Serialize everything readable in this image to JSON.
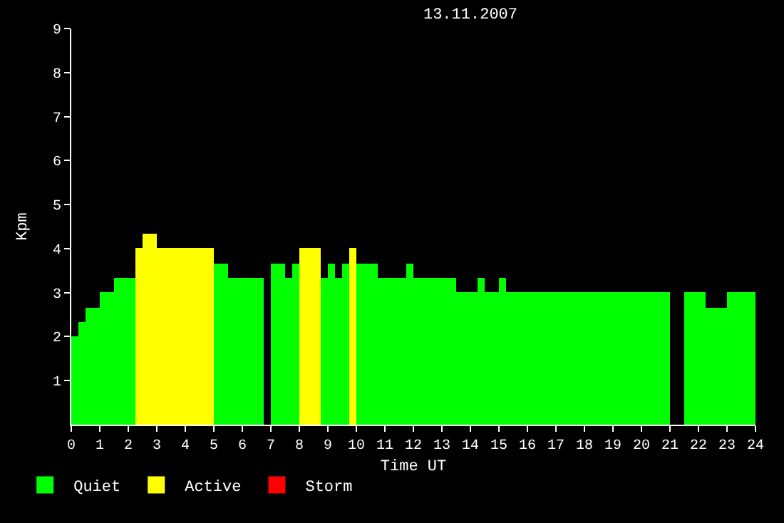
{
  "chart_data": {
    "type": "bar",
    "title": "13.11.2007",
    "xlabel": "Time UT",
    "ylabel": "Kpm",
    "x": [
      0.125,
      0.375,
      0.75,
      1.25,
      1.875,
      2.375,
      2.75,
      4.0,
      5.25,
      6.125,
      6.875,
      7.25,
      7.625,
      7.875,
      8.375,
      8.875,
      9.125,
      9.375,
      9.625,
      9.875,
      10.375,
      11.25,
      11.875,
      12.75,
      13.875,
      14.375,
      14.75,
      15.125,
      18.125,
      21.25,
      21.875,
      22.625,
      23.5
    ],
    "series": [
      {
        "name": "Quiet",
        "color": "#00ff00",
        "values": [
          2.0,
          2.33,
          2.67,
          3.0,
          3.33,
          null,
          null,
          null,
          3.67,
          3.33,
          null,
          3.67,
          3.33,
          3.67,
          null,
          3.33,
          3.67,
          3.33,
          3.67,
          null,
          3.67,
          3.33,
          3.67,
          3.33,
          3.0,
          3.33,
          3.0,
          3.33,
          3.0,
          null,
          3.0,
          2.67,
          3.0
        ]
      },
      {
        "name": "Active",
        "color": "#ffff00",
        "values": [
          null,
          null,
          null,
          null,
          null,
          4.0,
          4.33,
          4.0,
          null,
          null,
          null,
          null,
          null,
          null,
          4.0,
          null,
          null,
          null,
          null,
          4.0,
          null,
          null,
          null,
          null,
          null,
          null,
          null,
          null,
          null,
          null,
          null,
          null,
          null
        ]
      },
      {
        "name": "Storm",
        "color": "#ff0000",
        "values": [
          null,
          null,
          null,
          null,
          null,
          null,
          null,
          null,
          null,
          null,
          null,
          null,
          null,
          null,
          null,
          null,
          null,
          null,
          null,
          null,
          null,
          null,
          null,
          null,
          null,
          null,
          null,
          null,
          null,
          null,
          null,
          null,
          null
        ]
      }
    ],
    "xlim": [
      0,
      24
    ],
    "xticks": [
      0,
      1,
      2,
      3,
      4,
      5,
      6,
      7,
      8,
      9,
      10,
      11,
      12,
      13,
      14,
      15,
      16,
      17,
      18,
      19,
      20,
      21,
      22,
      23,
      24
    ],
    "ylim": [
      0,
      9
    ],
    "yticks": [
      1,
      2,
      3,
      4,
      5,
      6,
      7,
      8,
      9
    ],
    "legend": "bottom left",
    "grid": false
  }
}
